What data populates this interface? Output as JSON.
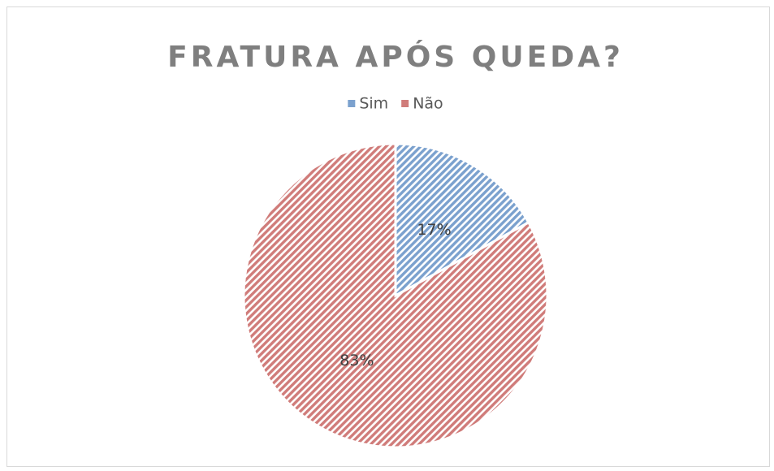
{
  "chart_data": {
    "type": "pie",
    "title": "FRATURA APÓS QUEDA?",
    "categories": [
      "Sim",
      "Não"
    ],
    "values": [
      17,
      83
    ],
    "value_labels": [
      "17%",
      "83%"
    ],
    "colors": [
      "#4f81bd",
      "#c0504d"
    ],
    "legend": "top",
    "pattern": "diagonal-hatch"
  }
}
